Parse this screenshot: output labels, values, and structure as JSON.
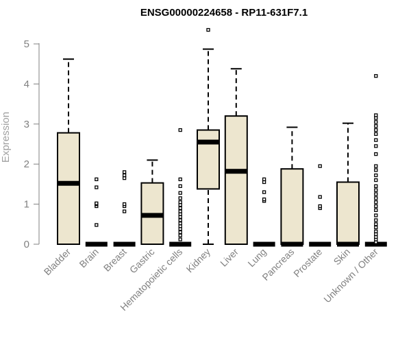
{
  "chart_data": {
    "type": "box",
    "title": "ENSG00000224658 - RP11-631F7.1",
    "xlabel": "",
    "ylabel": "Expression",
    "ylim": [
      0,
      5
    ],
    "yticks": [
      0,
      1,
      2,
      3,
      4,
      5
    ],
    "grid": false,
    "legend": "none",
    "box_fill": "#ede6cf",
    "categories": [
      "Bladder",
      "Brain",
      "Breast",
      "Gastric",
      "Hematopoietic cells",
      "Kidney",
      "Liver",
      "Lung",
      "Pancreas",
      "Prostate",
      "Skin",
      "Unknown / Other"
    ],
    "boxes": [
      {
        "category": "Bladder",
        "whisker_low": 0,
        "q1": 0,
        "median": 1.52,
        "q3": 2.78,
        "whisker_high": 4.62,
        "outliers": []
      },
      {
        "category": "Brain",
        "whisker_low": 0,
        "q1": 0,
        "median": 0,
        "q3": 0,
        "whisker_high": 0,
        "outliers": [
          0.48,
          0.95,
          1.0,
          1.02,
          1.42,
          1.62
        ]
      },
      {
        "category": "Breast",
        "whisker_low": 0,
        "q1": 0,
        "median": 0,
        "q3": 0,
        "whisker_high": 0,
        "outliers": [
          0.82,
          0.95,
          1.0,
          1.65,
          1.72,
          1.8
        ]
      },
      {
        "category": "Gastric",
        "whisker_low": 0,
        "q1": 0,
        "median": 0.72,
        "q3": 1.53,
        "whisker_high": 2.1,
        "outliers": []
      },
      {
        "category": "Hematopoietic cells",
        "whisker_low": 0,
        "q1": 0,
        "median": 0,
        "q3": 0,
        "whisker_high": 0,
        "outliers": [
          0.12,
          0.22,
          0.3,
          0.38,
          0.45,
          0.52,
          0.6,
          0.68,
          0.75,
          0.82,
          0.9,
          0.98,
          1.05,
          1.15,
          1.28,
          1.45,
          1.62,
          2.85
        ]
      },
      {
        "category": "Kidney",
        "whisker_low": 0,
        "q1": 1.38,
        "median": 2.55,
        "q3": 2.85,
        "whisker_high": 4.87,
        "outliers": [
          5.35
        ]
      },
      {
        "category": "Liver",
        "whisker_low": 0,
        "q1": 0,
        "median": 1.82,
        "q3": 3.2,
        "whisker_high": 4.38,
        "outliers": []
      },
      {
        "category": "Lung",
        "whisker_low": 0,
        "q1": 0,
        "median": 0,
        "q3": 0,
        "whisker_high": 0,
        "outliers": [
          1.08,
          1.12,
          1.3,
          1.55,
          1.62
        ]
      },
      {
        "category": "Pancreas",
        "whisker_low": 0,
        "q1": 0,
        "median": 0,
        "q3": 1.88,
        "whisker_high": 2.92,
        "outliers": []
      },
      {
        "category": "Prostate",
        "whisker_low": 0,
        "q1": 0,
        "median": 0,
        "q3": 0,
        "whisker_high": 0,
        "outliers": [
          0.9,
          0.95,
          1.18,
          1.95
        ]
      },
      {
        "category": "Skin",
        "whisker_low": 0,
        "q1": 0,
        "median": 0,
        "q3": 1.55,
        "whisker_high": 3.02,
        "outliers": []
      },
      {
        "category": "Unknown / Other",
        "whisker_low": 0,
        "q1": 0,
        "median": 0,
        "q3": 0,
        "whisker_high": 0,
        "outliers": [
          0.05,
          0.12,
          0.18,
          0.25,
          0.32,
          0.42,
          0.5,
          0.6,
          0.72,
          0.85,
          0.95,
          1.05,
          1.15,
          1.25,
          1.35,
          1.45,
          1.6,
          1.72,
          1.85,
          1.95,
          2.25,
          2.45,
          2.6,
          2.75,
          2.85,
          2.95,
          3.05,
          3.15,
          3.22,
          4.2
        ]
      }
    ]
  }
}
